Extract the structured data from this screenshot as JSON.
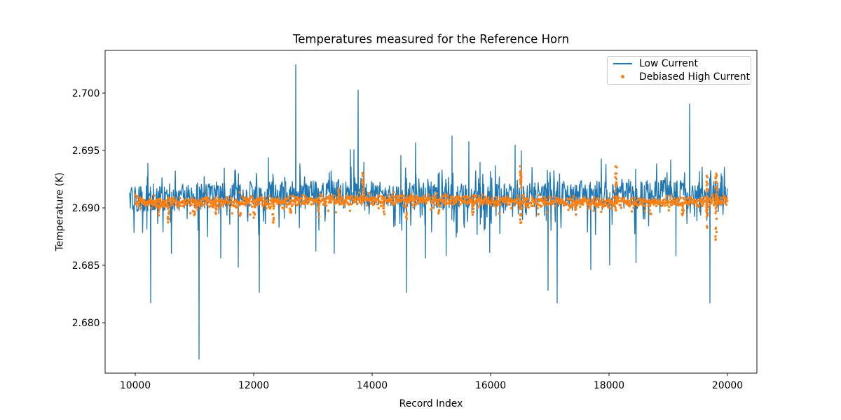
{
  "figure": {
    "title": "Temperatures measured for the Reference Horn",
    "xlabel": "Record Index",
    "ylabel": "Temperature (K)"
  },
  "legend": {
    "entries": [
      {
        "label": "Low Current",
        "type": "line",
        "color": "#1f77b4"
      },
      {
        "label": "Debiased High Current",
        "type": "marker",
        "color": "#ff7f0e"
      }
    ]
  },
  "chart_data": {
    "type": "line",
    "title": "Temperatures measured for the Reference Horn",
    "xlabel": "Record Index",
    "ylabel": "Temperature (K)",
    "xlim": [
      9491,
      20497
    ],
    "ylim": [
      2.67561,
      2.70372
    ],
    "xticks": [
      10000,
      12000,
      14000,
      16000,
      18000,
      20000
    ],
    "yticks": [
      2.68,
      2.685,
      2.69,
      2.695,
      2.7
    ],
    "grid": false,
    "legend_position": "upper right",
    "axis_color": "#000000",
    "series": [
      {
        "name": "Low Current",
        "type": "line",
        "color": "#1f77b4",
        "x_start": 9900,
        "x_end": 20000,
        "baseline_band": [
          2.69,
          2.6922
        ],
        "noise_comb_down_to": 2.6874,
        "noise_comb_up_to": 2.6936,
        "up_spikes": [
          [
            10213,
            2.6939
          ],
          [
            11503,
            2.6935
          ],
          [
            11680,
            2.6933
          ],
          [
            12248,
            2.6944
          ],
          [
            12710,
            2.7025
          ],
          [
            13633,
            2.6951
          ],
          [
            13692,
            2.6951
          ],
          [
            13763,
            2.7003
          ],
          [
            13860,
            2.694
          ],
          [
            14485,
            2.6946
          ],
          [
            14733,
            2.6957
          ],
          [
            15349,
            2.6963
          ],
          [
            15633,
            2.6958
          ],
          [
            15822,
            2.694
          ],
          [
            16081,
            2.6937
          ],
          [
            16414,
            2.6955
          ],
          [
            16520,
            2.695
          ],
          [
            16958,
            2.6933
          ],
          [
            17870,
            2.6943
          ],
          [
            18450,
            2.6934
          ],
          [
            19041,
            2.6942
          ],
          [
            19361,
            2.6991
          ],
          [
            19527,
            2.6932
          ],
          [
            19893,
            2.693
          ]
        ],
        "down_spikes": [
          [
            10260,
            2.6817
          ],
          [
            10610,
            2.686
          ],
          [
            11077,
            2.6768
          ],
          [
            11444,
            2.6856
          ],
          [
            11740,
            2.6848
          ],
          [
            12095,
            2.6826
          ],
          [
            13050,
            2.6862
          ],
          [
            13360,
            2.686
          ],
          [
            14580,
            2.6826
          ],
          [
            14900,
            2.6856
          ],
          [
            15250,
            2.6858
          ],
          [
            15985,
            2.6861
          ],
          [
            16970,
            2.6828
          ],
          [
            17124,
            2.6817
          ],
          [
            17692,
            2.6846
          ],
          [
            18010,
            2.685
          ],
          [
            18455,
            2.6852
          ],
          [
            19130,
            2.6858
          ],
          [
            19704,
            2.6817
          ]
        ]
      },
      {
        "name": "Debiased High Current",
        "type": "scatter",
        "color": "#ff7f0e",
        "x_start": 10000,
        "x_end": 20000,
        "center": 2.6906,
        "spread": 0.00022,
        "clusters": [
          [
            10402,
            2.6889,
            2.6904
          ],
          [
            10560,
            2.6886,
            2.6904
          ],
          [
            11000,
            2.6893,
            2.6904
          ],
          [
            11361,
            2.6889,
            2.6904
          ],
          [
            11770,
            2.6892,
            2.6904
          ],
          [
            12010,
            2.6891,
            2.6904
          ],
          [
            12331,
            2.6886,
            2.6904
          ],
          [
            12620,
            2.6893,
            2.6905
          ],
          [
            13090,
            2.6892,
            2.6904
          ],
          [
            13440,
            2.6903,
            2.692
          ],
          [
            13846,
            2.6903,
            2.6933
          ],
          [
            14200,
            2.6893,
            2.6904
          ],
          [
            14580,
            2.689,
            2.6904
          ],
          [
            15120,
            2.6893,
            2.6904
          ],
          [
            15700,
            2.6892,
            2.6904
          ],
          [
            16509,
            2.6883,
            2.694
          ],
          [
            16800,
            2.6893,
            2.6904
          ],
          [
            17430,
            2.6892,
            2.6904
          ],
          [
            18118,
            2.6896,
            2.6937
          ],
          [
            18700,
            2.6893,
            2.6904
          ],
          [
            19240,
            2.6892,
            2.6904
          ],
          [
            19656,
            2.6878,
            2.6931
          ],
          [
            19810,
            2.6872,
            2.693
          ]
        ]
      }
    ]
  }
}
